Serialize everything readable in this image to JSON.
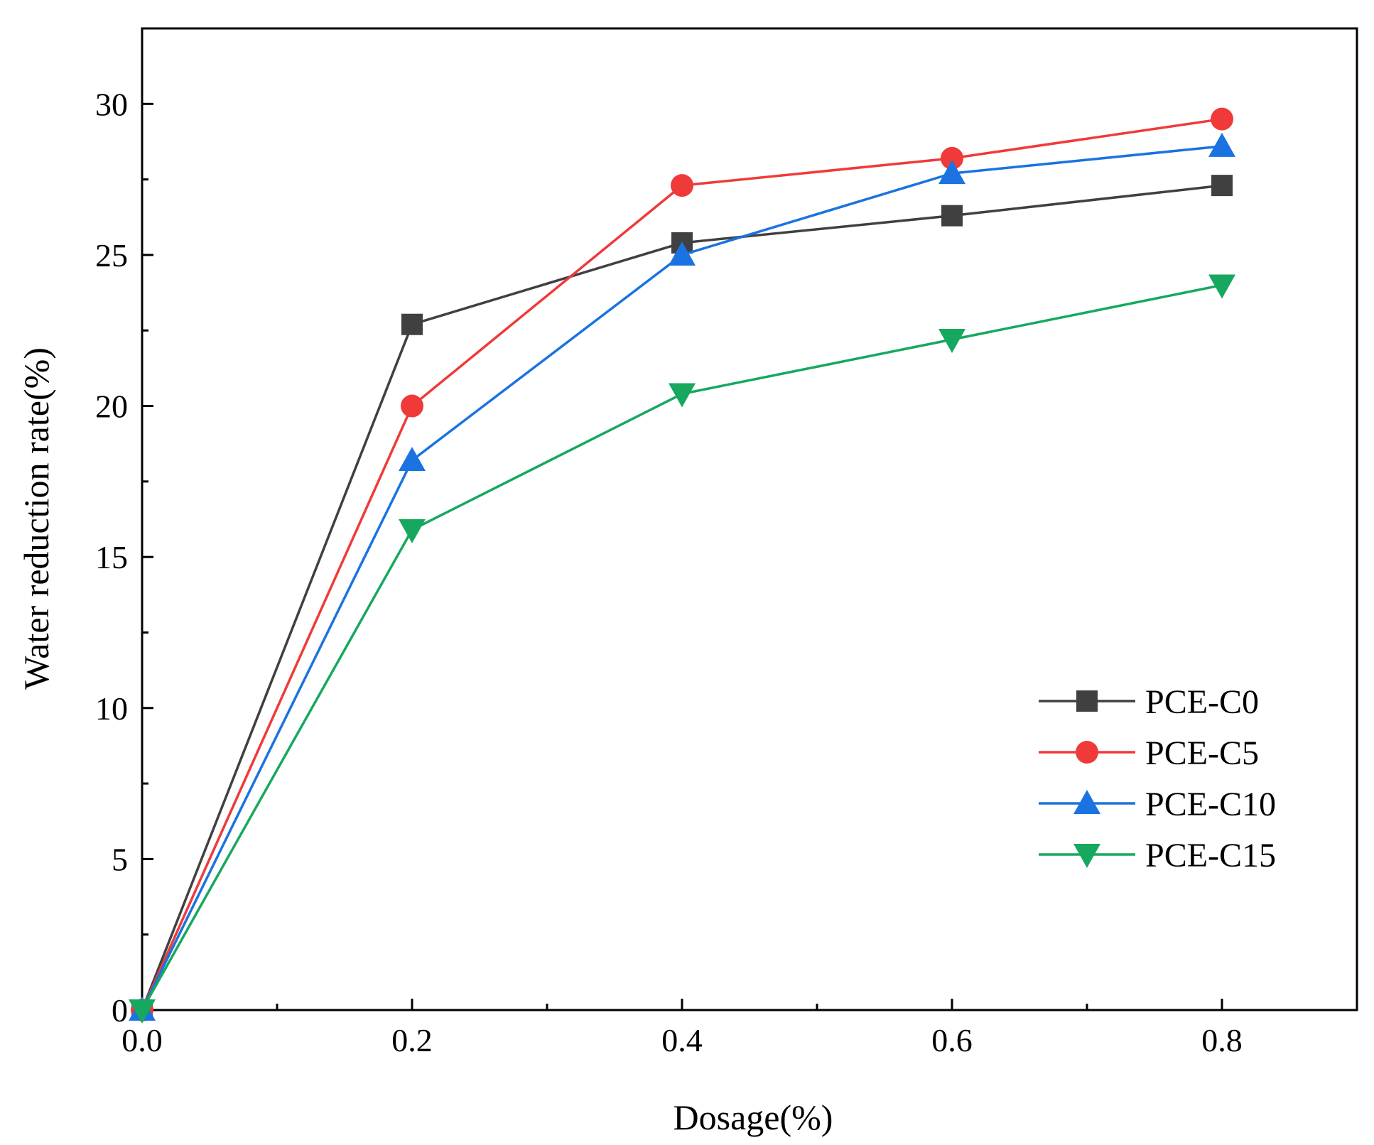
{
  "chart_data": {
    "type": "line",
    "title": "",
    "xlabel": "Dosage(%)",
    "ylabel": "Water reduction rate(%)",
    "xlim": [
      0,
      0.9
    ],
    "ylim": [
      0,
      32.5
    ],
    "x_ticks": [
      0.0,
      0.2,
      0.4,
      0.6,
      0.8
    ],
    "x_tick_labels": [
      "0.0",
      "0.2",
      "0.4",
      "0.6",
      "0.8"
    ],
    "y_ticks": [
      0,
      5,
      10,
      15,
      20,
      25,
      30
    ],
    "y_tick_labels": [
      "0",
      "5",
      "10",
      "15",
      "20",
      "25",
      "30"
    ],
    "grid": false,
    "legend_position": "bottom-right",
    "x": [
      0.0,
      0.2,
      0.4,
      0.6,
      0.8
    ],
    "series": [
      {
        "name": "PCE-C0",
        "color": "#404040",
        "marker": "square",
        "values": [
          0,
          22.7,
          25.4,
          26.3,
          27.3
        ]
      },
      {
        "name": "PCE-C5",
        "color": "#f03a3a",
        "marker": "circle",
        "values": [
          0,
          20.0,
          27.3,
          28.2,
          29.5
        ]
      },
      {
        "name": "PCE-C10",
        "color": "#1a73e0",
        "marker": "triangle-up",
        "values": [
          0,
          18.2,
          25.0,
          27.7,
          28.6
        ]
      },
      {
        "name": "PCE-C15",
        "color": "#16a85f",
        "marker": "triangle-down",
        "values": [
          0,
          15.9,
          20.4,
          22.2,
          24.0
        ]
      }
    ]
  }
}
